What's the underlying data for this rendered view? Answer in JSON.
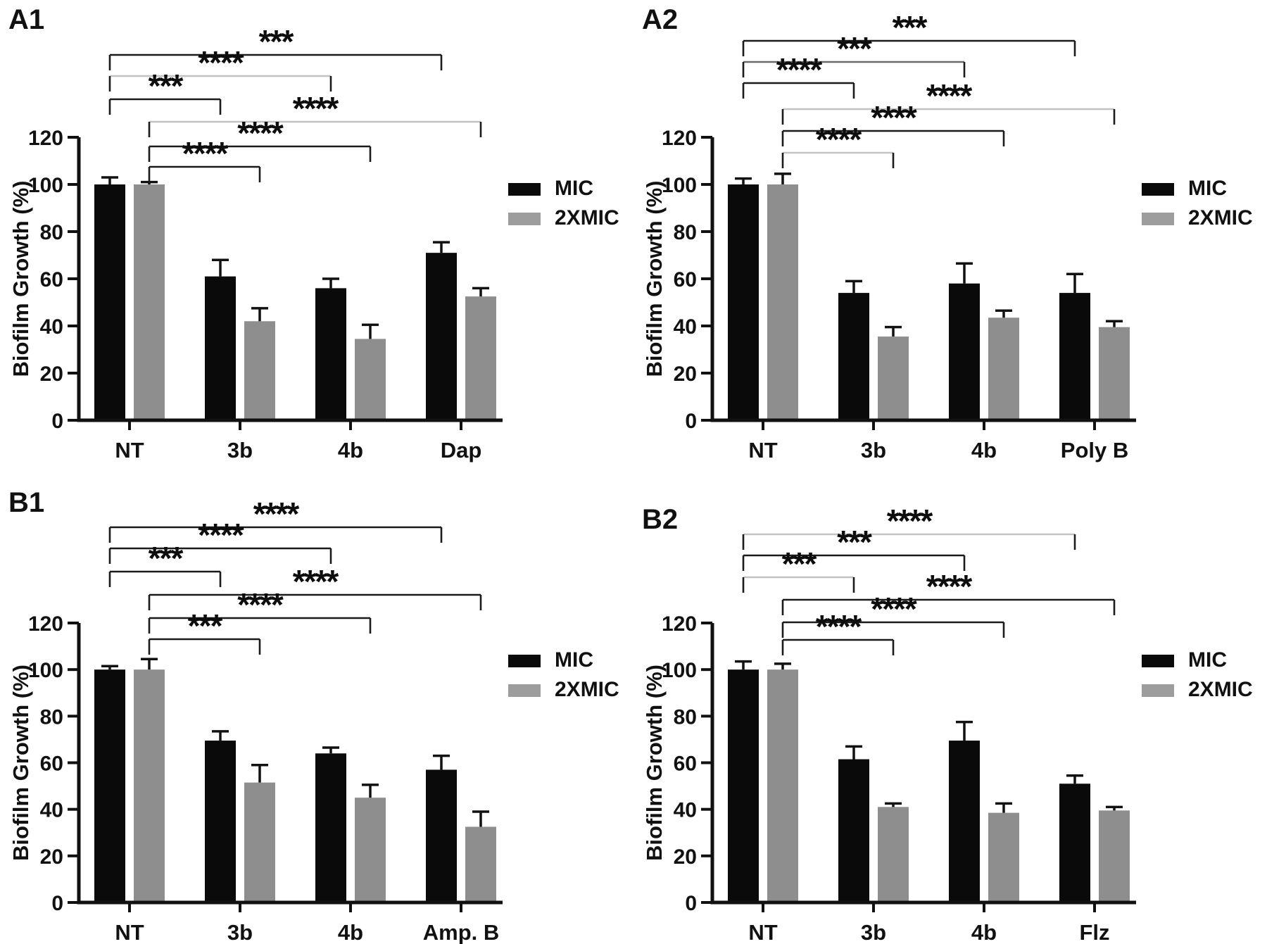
{
  "figure": {
    "background": "#ffffff",
    "legend": {
      "position": "right",
      "items": [
        {
          "label": "MIC",
          "color": "#0a0a0a"
        },
        {
          "label": "2XMIC",
          "color": "#9d9d9d"
        }
      ]
    },
    "tones": {
      "dark": "#1b1b1b",
      "mid": "#6b6b6b",
      "light": "#c2c2c2"
    }
  },
  "chart_data": [
    {
      "panel_label": "A1",
      "type": "bar",
      "ylabel": "Biofilm Growth (%)",
      "ylim": [
        0,
        120
      ],
      "yticks": [
        0,
        20,
        40,
        60,
        80,
        100,
        120
      ],
      "grid": "off",
      "categories": [
        "NT",
        "3b",
        "4b",
        "Dap"
      ],
      "series": [
        {
          "name": "MIC",
          "color": "#0a0a0a",
          "values": [
            100,
            61,
            56,
            71
          ],
          "errors": [
            3,
            7,
            4,
            4.5
          ]
        },
        {
          "name": "2XMIC",
          "color": "#8e8e8e",
          "values": [
            100,
            42,
            34.5,
            52.5
          ],
          "errors": [
            1,
            5.5,
            6,
            3.5
          ]
        }
      ],
      "significance": [
        {
          "series": "MIC",
          "from": "NT",
          "to": "Dap",
          "label": "***",
          "tone": "dark",
          "y": 78
        },
        {
          "series": "MIC",
          "from": "NT",
          "to": "4b",
          "label": "****",
          "tone": "light",
          "y": 108
        },
        {
          "series": "MIC",
          "from": "NT",
          "to": "3b",
          "label": "***",
          "tone": "dark",
          "y": 141
        },
        {
          "series": "2XMIC",
          "from": "NT",
          "to": "Dap",
          "label": "****",
          "tone": "light",
          "y": 173
        },
        {
          "series": "2XMIC",
          "from": "NT",
          "to": "4b",
          "label": "****",
          "tone": "dark",
          "y": 208
        },
        {
          "series": "2XMIC",
          "from": "NT",
          "to": "3b",
          "label": "****",
          "tone": "dark",
          "y": 237
        }
      ]
    },
    {
      "panel_label": "A2",
      "type": "bar",
      "ylabel": "Biofilm Growth (%)",
      "ylim": [
        0,
        120
      ],
      "yticks": [
        0,
        20,
        40,
        60,
        80,
        100,
        120
      ],
      "grid": "off",
      "categories": [
        "NT",
        "3b",
        "4b",
        "Poly B"
      ],
      "series": [
        {
          "name": "MIC",
          "color": "#0a0a0a",
          "values": [
            100,
            54,
            58,
            54
          ],
          "errors": [
            2.5,
            5,
            8.5,
            8
          ]
        },
        {
          "name": "2XMIC",
          "color": "#8e8e8e",
          "values": [
            100,
            35.5,
            43.5,
            39.5
          ],
          "errors": [
            4.5,
            4,
            3,
            2.5
          ]
        }
      ],
      "significance": [
        {
          "series": "MIC",
          "from": "NT",
          "to": "Poly B",
          "label": "***",
          "tone": "dark",
          "y": 58
        },
        {
          "series": "MIC",
          "from": "NT",
          "to": "4b",
          "label": "***",
          "tone": "mid",
          "y": 88
        },
        {
          "series": "MIC",
          "from": "NT",
          "to": "3b",
          "label": "****",
          "tone": "dark",
          "y": 118
        },
        {
          "series": "2XMIC",
          "from": "NT",
          "to": "Poly B",
          "label": "****",
          "tone": "light",
          "y": 155
        },
        {
          "series": "2XMIC",
          "from": "NT",
          "to": "4b",
          "label": "****",
          "tone": "dark",
          "y": 186
        },
        {
          "series": "2XMIC",
          "from": "NT",
          "to": "3b",
          "label": "****",
          "tone": "light",
          "y": 217
        }
      ]
    },
    {
      "panel_label": "B1",
      "type": "bar",
      "ylabel": "Biofilm Growth (%)",
      "ylim": [
        0,
        120
      ],
      "yticks": [
        0,
        20,
        40,
        60,
        80,
        100,
        120
      ],
      "grid": "off",
      "categories": [
        "NT",
        "3b",
        "4b",
        "Amp. B"
      ],
      "series": [
        {
          "name": "MIC",
          "color": "#0a0a0a",
          "values": [
            100,
            69.5,
            64,
            57
          ],
          "errors": [
            1.5,
            4,
            2.5,
            6
          ]
        },
        {
          "name": "2XMIC",
          "color": "#8e8e8e",
          "values": [
            100,
            51.5,
            45,
            32.5
          ],
          "errors": [
            4.5,
            7.5,
            5.5,
            6.5
          ]
        }
      ],
      "significance": [
        {
          "series": "MIC",
          "from": "NT",
          "to": "Amp. B",
          "label": "****",
          "tone": "dark",
          "y": 79
        },
        {
          "series": "MIC",
          "from": "NT",
          "to": "4b",
          "label": "****",
          "tone": "dark",
          "y": 109
        },
        {
          "series": "MIC",
          "from": "NT",
          "to": "3b",
          "label": "***",
          "tone": "dark",
          "y": 142
        },
        {
          "series": "2XMIC",
          "from": "NT",
          "to": "Amp. B",
          "label": "****",
          "tone": "dark",
          "y": 175
        },
        {
          "series": "2XMIC",
          "from": "NT",
          "to": "4b",
          "label": "****",
          "tone": "dark",
          "y": 208
        },
        {
          "series": "2XMIC",
          "from": "NT",
          "to": "3b",
          "label": "***",
          "tone": "dark",
          "y": 238
        }
      ]
    },
    {
      "panel_label": "B2",
      "type": "bar",
      "ylabel": "Biofilm Growth (%)",
      "ylim": [
        0,
        120
      ],
      "yticks": [
        0,
        20,
        40,
        60,
        80,
        100,
        120
      ],
      "grid": "off",
      "categories": [
        "NT",
        "3b",
        "4b",
        "Flz"
      ],
      "series": [
        {
          "name": "MIC",
          "color": "#0a0a0a",
          "values": [
            100,
            61.5,
            69.5,
            51
          ],
          "errors": [
            3.5,
            5.5,
            8,
            3.5
          ]
        },
        {
          "name": "2XMIC",
          "color": "#8e8e8e",
          "values": [
            100,
            41,
            38.5,
            39.5
          ],
          "errors": [
            2.5,
            1.5,
            4,
            1.5
          ]
        }
      ],
      "significance": [
        {
          "series": "MIC",
          "from": "NT",
          "to": "Flz",
          "label": "****",
          "tone": "light",
          "y": 89
        },
        {
          "series": "MIC",
          "from": "NT",
          "to": "4b",
          "label": "***",
          "tone": "dark",
          "y": 119
        },
        {
          "series": "MIC",
          "from": "NT",
          "to": "3b",
          "label": "***",
          "tone": "light",
          "y": 150
        },
        {
          "series": "2XMIC",
          "from": "NT",
          "to": "Flz",
          "label": "****",
          "tone": "dark",
          "y": 182
        },
        {
          "series": "2XMIC",
          "from": "NT",
          "to": "4b",
          "label": "****",
          "tone": "dark",
          "y": 214
        },
        {
          "series": "2XMIC",
          "from": "NT",
          "to": "3b",
          "label": "****",
          "tone": "dark",
          "y": 239
        }
      ]
    }
  ]
}
